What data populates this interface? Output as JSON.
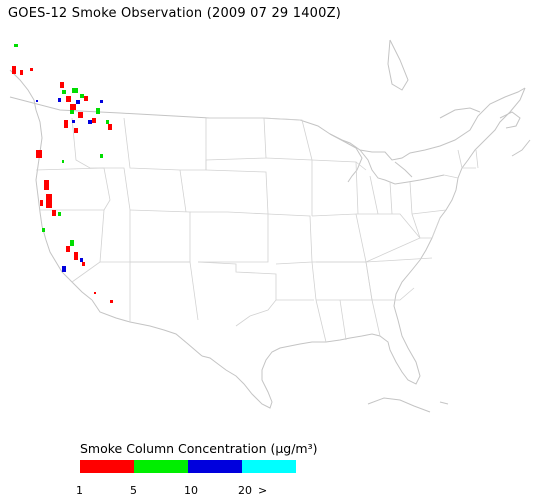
{
  "title": "GOES-12 Smoke Observation (2009 07 29  1400Z)",
  "legend": {
    "title": "Smoke Column Concentration (μg/m³)",
    "bins": [
      {
        "color": "#ff0000",
        "label": "1"
      },
      {
        "color": "#00ee00",
        "label": "5"
      },
      {
        "color": "#0000dd",
        "label": "10"
      },
      {
        "color": "#00ffff",
        "label": "20"
      }
    ],
    "end_label": ">"
  },
  "colors": {
    "background": "#ffffff",
    "boundary_lines": "#c8c8c8",
    "text": "#000000"
  }
}
